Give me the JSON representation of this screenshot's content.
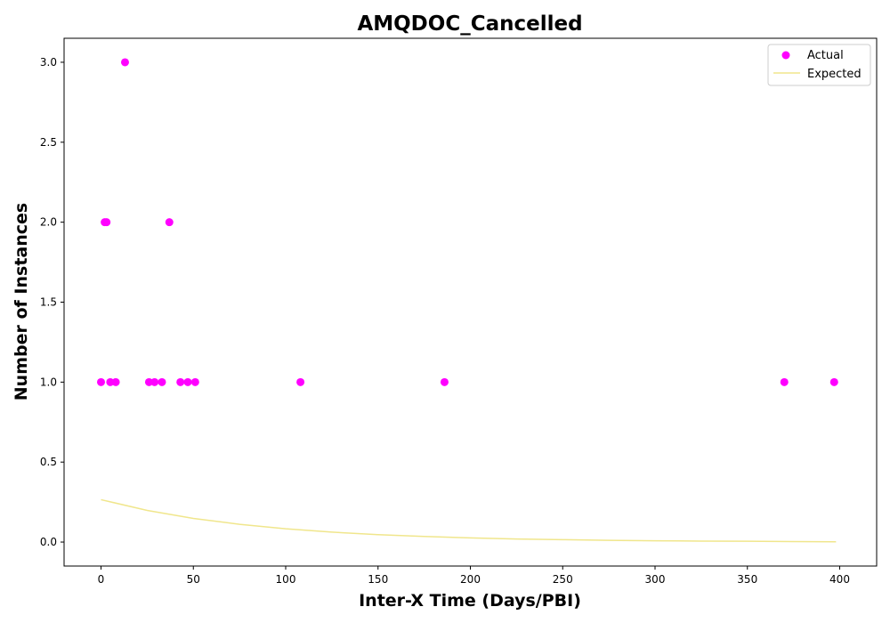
{
  "chart_data": {
    "type": "scatter",
    "title": "AMQDOC_Cancelled",
    "xlabel": "Inter-X Time (Days/PBI)",
    "ylabel": "Number of Instances",
    "xlim": [
      -20,
      420
    ],
    "ylim": [
      -0.15,
      3.15
    ],
    "xticks": [
      0,
      50,
      100,
      150,
      200,
      250,
      300,
      350,
      400
    ],
    "yticks": [
      0.0,
      0.5,
      1.0,
      1.5,
      2.0,
      2.5,
      3.0
    ],
    "xtick_labels": [
      "0",
      "50",
      "100",
      "150",
      "200",
      "250",
      "300",
      "350",
      "400"
    ],
    "ytick_labels": [
      "0.0",
      "0.5",
      "1.0",
      "1.5",
      "2.0",
      "2.5",
      "3.0"
    ],
    "legend_position": "top-right",
    "grid": false,
    "series": [
      {
        "name": "Actual",
        "kind": "scatter",
        "color": "#ff00ff",
        "points": [
          [
            0,
            1
          ],
          [
            2,
            2
          ],
          [
            3,
            2
          ],
          [
            5,
            1
          ],
          [
            8,
            1
          ],
          [
            13,
            3
          ],
          [
            26,
            1
          ],
          [
            29,
            1
          ],
          [
            33,
            1
          ],
          [
            37,
            2
          ],
          [
            43,
            1
          ],
          [
            47,
            1
          ],
          [
            51,
            1
          ],
          [
            108,
            1
          ],
          [
            186,
            1
          ],
          [
            370,
            1
          ],
          [
            397,
            1
          ]
        ]
      },
      {
        "name": "Expected",
        "kind": "line",
        "color": "#f0e68c",
        "points": [
          [
            0,
            0.265
          ],
          [
            25,
            0.198
          ],
          [
            50,
            0.148
          ],
          [
            75,
            0.111
          ],
          [
            100,
            0.083
          ],
          [
            125,
            0.062
          ],
          [
            150,
            0.046
          ],
          [
            175,
            0.035
          ],
          [
            200,
            0.026
          ],
          [
            225,
            0.019
          ],
          [
            250,
            0.015
          ],
          [
            275,
            0.011
          ],
          [
            300,
            0.008
          ],
          [
            325,
            0.006
          ],
          [
            350,
            0.005
          ],
          [
            375,
            0.003
          ],
          [
            398,
            0.002
          ]
        ]
      }
    ]
  }
}
